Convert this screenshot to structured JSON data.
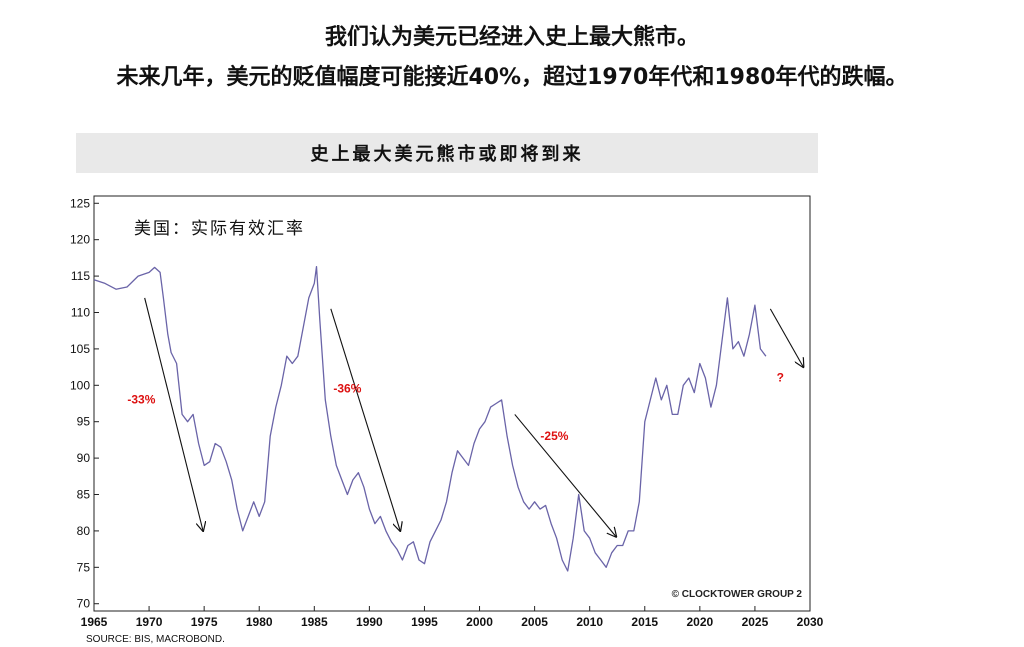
{
  "headline": {
    "line1": "我们认为美元已经进入史上最大熊市。",
    "line2": "未来几年，美元的贬值幅度可能接近40%，超过1970年代和1980年代的跌幅。"
  },
  "banner_title": "史上最大美元熊市或即将到来",
  "source": "SOURCE: BIS, MACROBOND.",
  "chart_data": {
    "type": "line",
    "title": "美国：实际有效汇率",
    "xlabel": "",
    "ylabel": "",
    "xlim": [
      1965,
      2030
    ],
    "ylim": [
      69,
      126
    ],
    "xticks": [
      1965,
      1970,
      1975,
      1980,
      1985,
      1990,
      1995,
      2000,
      2005,
      2010,
      2015,
      2020,
      2025,
      2030
    ],
    "yticks": [
      70,
      75,
      80,
      85,
      90,
      95,
      100,
      105,
      110,
      115,
      120,
      125
    ],
    "grid": false,
    "line_color": "#6a64a8",
    "series": [
      {
        "x": [
          1964.0,
          1965.0,
          1966.0,
          1967.0,
          1968.0,
          1969.0,
          1970.0,
          1970.5,
          1971.0,
          1971.3,
          1971.7,
          1972.0,
          1972.5,
          1973.0,
          1973.5,
          1974.0,
          1974.5,
          1975.0,
          1975.5,
          1976.0,
          1976.5,
          1977.0,
          1977.5,
          1978.0,
          1978.5,
          1979.0,
          1979.5,
          1980.0,
          1980.5,
          1981.0,
          1981.5,
          1982.0,
          1982.5,
          1983.0,
          1983.5,
          1984.0,
          1984.5,
          1985.0,
          1985.2,
          1985.5,
          1986.0,
          1986.5,
          1987.0,
          1987.5,
          1988.0,
          1988.5,
          1989.0,
          1989.5,
          1990.0,
          1990.5,
          1991.0,
          1991.5,
          1992.0,
          1992.5,
          1993.0,
          1993.5,
          1994.0,
          1994.5,
          1995.0,
          1995.5,
          1996.0,
          1996.5,
          1997.0,
          1997.5,
          1998.0,
          1998.5,
          1999.0,
          1999.5,
          2000.0,
          2000.5,
          2001.0,
          2001.5,
          2002.0,
          2002.5,
          2003.0,
          2003.5,
          2004.0,
          2004.5,
          2005.0,
          2005.5,
          2006.0,
          2006.5,
          2007.0,
          2007.5,
          2008.0,
          2008.5,
          2009.0,
          2009.5,
          2010.0,
          2010.5,
          2011.0,
          2011.5,
          2012.0,
          2012.5,
          2013.0,
          2013.5,
          2014.0,
          2014.5,
          2015.0,
          2015.5,
          2016.0,
          2016.5,
          2017.0,
          2017.5,
          2018.0,
          2018.5,
          2019.0,
          2019.5,
          2020.0,
          2020.5,
          2021.0,
          2021.5,
          2022.0,
          2022.5,
          2023.0,
          2023.5,
          2024.0,
          2024.5,
          2025.0,
          2025.5,
          2026.0
        ],
        "y": [
          115.5,
          114.5,
          114.0,
          113.2,
          113.5,
          115.0,
          115.5,
          116.2,
          115.5,
          112.0,
          107.0,
          104.5,
          103.0,
          96.0,
          95.0,
          96.0,
          92.0,
          89.0,
          89.5,
          92.0,
          91.5,
          89.5,
          87.0,
          83.0,
          80.0,
          82.0,
          84.0,
          82.0,
          84.0,
          93.0,
          97.0,
          100.0,
          104.0,
          103.0,
          104.0,
          108.0,
          112.0,
          114.0,
          116.3,
          109.0,
          98.0,
          93.0,
          89.0,
          87.0,
          85.0,
          87.0,
          88.0,
          86.0,
          83.0,
          81.0,
          82.0,
          80.0,
          78.5,
          77.5,
          76.0,
          78.0,
          78.5,
          76.0,
          75.5,
          78.5,
          80.0,
          81.5,
          84.0,
          88.0,
          91.0,
          90.0,
          89.0,
          92.0,
          94.0,
          95.0,
          97.0,
          97.5,
          98.0,
          93.0,
          89.0,
          86.0,
          84.0,
          83.0,
          84.0,
          83.0,
          83.5,
          81.0,
          79.0,
          76.0,
          74.5,
          79.0,
          85.0,
          80.0,
          79.0,
          77.0,
          76.0,
          75.0,
          77.0,
          78.0,
          78.0,
          80.0,
          80.0,
          84.0,
          95.0,
          98.0,
          101.0,
          98.0,
          100.0,
          96.0,
          96.0,
          100.0,
          101.0,
          99.0,
          103.0,
          101.0,
          97.0,
          100.0,
          106.0,
          112.0,
          105.0,
          106.0,
          104.0,
          107.0,
          111.0,
          105.0,
          104.0
        ]
      }
    ],
    "annotations": [
      {
        "text": "-33%",
        "x": 1969.3,
        "y": 97.5,
        "color": "#dd1111"
      },
      {
        "text": "-36%",
        "x": 1988.0,
        "y": 99.0,
        "color": "#dd1111"
      },
      {
        "text": "-25%",
        "x": 2006.8,
        "y": 92.5,
        "color": "#dd1111"
      },
      {
        "text": "?",
        "x": 2027.3,
        "y": 100.5,
        "color": "#dd1111"
      }
    ],
    "arrows": [
      {
        "from": [
          1969.6,
          112.0
        ],
        "to": [
          1974.9,
          80.0
        ]
      },
      {
        "from": [
          1986.5,
          110.5
        ],
        "to": [
          1992.8,
          80.0
        ]
      },
      {
        "from": [
          2003.2,
          96.0
        ],
        "to": [
          2012.4,
          79.2
        ]
      },
      {
        "from": [
          2026.4,
          110.5
        ],
        "to": [
          2029.4,
          102.5
        ]
      }
    ],
    "watermark": "© CLOCKTOWER GROUP 2"
  }
}
